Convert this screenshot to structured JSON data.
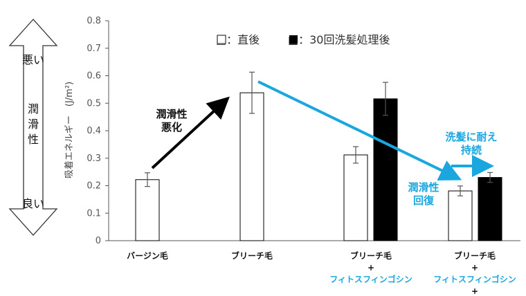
{
  "chart_data": {
    "type": "bar",
    "ylabel": "吸着エネルギー　(J/m²)",
    "ylim": [
      0,
      0.8
    ],
    "yticks": [
      "0",
      "0.1",
      "0.2",
      "0.3",
      "0.4",
      "0.5",
      "0.6",
      "0.7",
      "0.8"
    ],
    "categories": [
      {
        "lines": [
          "バージン毛"
        ]
      },
      {
        "lines": [
          "ブリーチ毛"
        ]
      },
      {
        "lines": [
          "ブリーチ毛",
          "+",
          "フィトスフィンゴシン"
        ]
      },
      {
        "lines": [
          "ブリーチ毛",
          "+",
          "フィトスフィンゴシン",
          "+"
        ]
      }
    ],
    "series": [
      {
        "name": "直後",
        "color": "#ffffff",
        "values": [
          0.222,
          0.538,
          0.312,
          0.181
        ],
        "errors": [
          0.025,
          0.075,
          0.03,
          0.018
        ]
      },
      {
        "name": "30回洗髪処理後",
        "color": "#000000",
        "values": [
          null,
          null,
          0.516,
          0.23
        ],
        "errors": [
          null,
          null,
          0.06,
          0.018
        ]
      }
    ],
    "legend": [
      "□：直後",
      "■：30回洗髪処理後"
    ],
    "legend_position": "top",
    "grid": false,
    "scale_indicator": {
      "top": "悪い",
      "middle": "潤滑性",
      "bottom": "良い"
    },
    "annotations": {
      "worsen": [
        "潤滑性",
        "悪化"
      ],
      "recover": [
        "潤滑性",
        "回復"
      ],
      "persist": [
        "洗髪に耐え",
        "持続"
      ]
    },
    "colors": {
      "arrow_black": "#000000",
      "arrow_blue": "#1aa7e0",
      "axis": "#555555"
    }
  }
}
